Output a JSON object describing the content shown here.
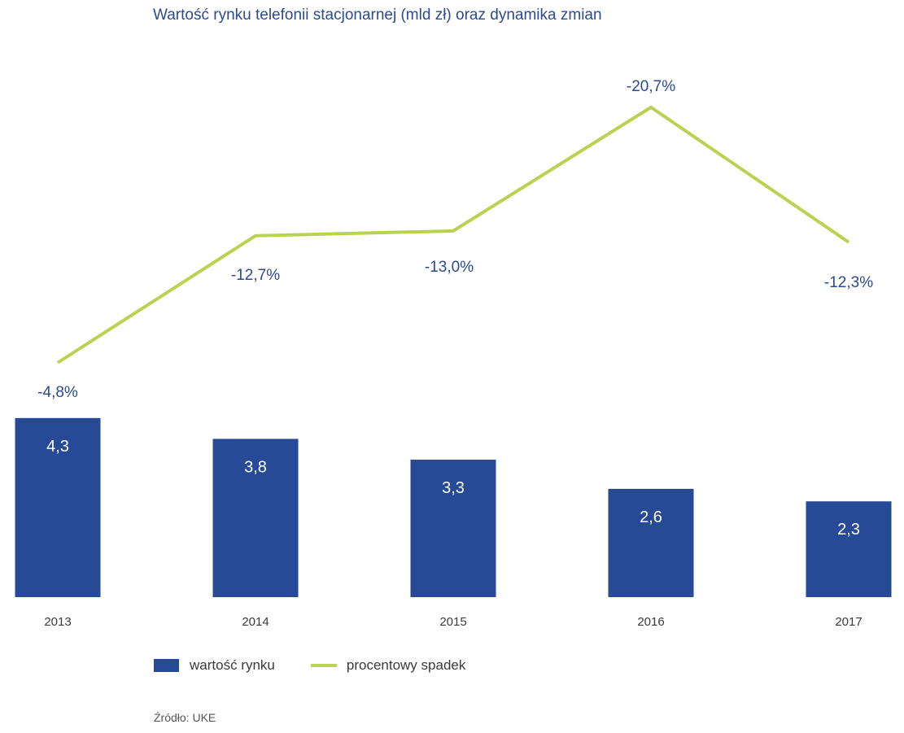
{
  "chart_data": {
    "type": "bar+line",
    "title": "Wartość rynku telefonii stacjonarnej (mld zł) oraz dynamika zmian",
    "categories": [
      "2013",
      "2014",
      "2015",
      "2016",
      "2017"
    ],
    "series": [
      {
        "name": "wartość rynku",
        "type": "bar",
        "values": [
          4.3,
          3.8,
          3.3,
          2.6,
          2.3
        ],
        "labels": [
          "4,3",
          "3,8",
          "3,3",
          "2,6",
          "2,3"
        ],
        "color": "#264a96"
      },
      {
        "name": "procentowy spadek",
        "type": "line",
        "values": [
          -4.8,
          -12.7,
          -13.0,
          -20.7,
          -12.3
        ],
        "labels": [
          "-4,8%",
          "-12,7%",
          "-13,0%",
          "-20,7%",
          "-12,3%"
        ],
        "color": "#b9d24f"
      }
    ],
    "source": "Źródło: UKE",
    "grid": false,
    "legend_position": "bottom-left"
  },
  "colors": {
    "title": "#2b4a94",
    "bar_label": "#ffffff",
    "line_label": "#2b4a94",
    "axis_label": "#3a3a3a"
  }
}
